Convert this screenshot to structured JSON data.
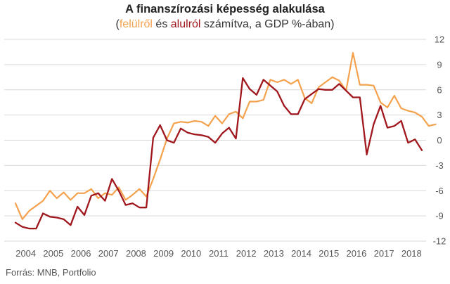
{
  "title": "A finanszírozási képesség alakulása",
  "subtitle": {
    "open": "(",
    "s1": "felülről",
    "mid": " és ",
    "s2": "alulról",
    "rest": " számítva, a GDP %-ában)"
  },
  "source": "Forrás: MNB, Portfolio",
  "colors": {
    "felulrol": "#f4a24e",
    "alulrol": "#a0171d",
    "grid": "#d9d9d9"
  },
  "chart_data": {
    "type": "line",
    "x_start": 2004.0,
    "x_step": 0.25,
    "x_ticks": [
      "2004",
      "2005",
      "2006",
      "2007",
      "2008",
      "2009",
      "2010",
      "2011",
      "2012",
      "2013",
      "2014",
      "2015",
      "2016",
      "2017",
      "2018"
    ],
    "y_ticks": [
      12,
      9,
      6,
      3,
      0,
      -3,
      -6,
      -9,
      -12
    ],
    "ylim": [
      -12,
      12
    ],
    "y_axis_side": "right",
    "grid": "horizontal",
    "series": [
      {
        "name": "felülről",
        "color": "#f4a24e",
        "values": [
          -7.5,
          -9.4,
          -8.4,
          -7.8,
          -7.2,
          -6.0,
          -6.9,
          -6.2,
          -7.1,
          -6.3,
          -6.3,
          -5.8,
          -6.9,
          -6.3,
          -6.5,
          -5.6,
          -7.1,
          -6.5,
          -5.8,
          -6.7,
          -4.6,
          -2.3,
          0.2,
          2.0,
          2.2,
          2.1,
          2.3,
          2.2,
          1.7,
          2.9,
          2.0,
          3.1,
          3.4,
          2.6,
          4.6,
          4.6,
          4.8,
          7.2,
          6.9,
          7.2,
          6.7,
          7.2,
          5.0,
          4.4,
          6.3,
          6.9,
          7.5,
          7.1,
          5.9,
          10.4,
          6.6,
          6.6,
          6.5,
          4.5,
          3.9,
          5.3,
          3.8,
          3.5,
          3.3,
          2.8,
          1.7,
          1.9
        ]
      },
      {
        "name": "alulról",
        "color": "#a0171d",
        "values": [
          -9.8,
          -10.3,
          -10.5,
          -10.5,
          -8.7,
          -9.1,
          -9.2,
          -9.4,
          -10.1,
          -7.9,
          -8.9,
          -6.6,
          -6.3,
          -7.2,
          -4.6,
          -6.0,
          -7.7,
          -7.5,
          -8.0,
          -8.0,
          0.3,
          1.8,
          0.0,
          -0.3,
          1.4,
          0.9,
          0.7,
          0.6,
          0.4,
          -0.3,
          0.8,
          1.5,
          0.2,
          7.4,
          6.1,
          5.4,
          7.2,
          6.5,
          5.8,
          4.1,
          3.1,
          3.1,
          4.9,
          5.5,
          6.1,
          6.0,
          6.0,
          6.7,
          5.9,
          5.1,
          5.1,
          -1.7,
          1.9,
          4.1,
          1.5,
          1.7,
          2.3,
          -0.3,
          0.1,
          -1.2
        ]
      }
    ]
  }
}
